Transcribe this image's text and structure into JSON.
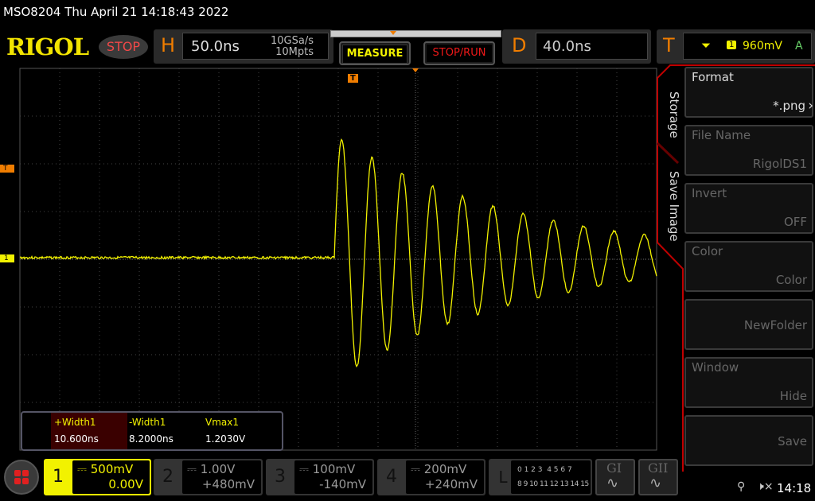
{
  "header": {
    "title": "MSO8204  Thu April 21 14:18:43 2022",
    "logo": "RIGOL",
    "run_state": "STOP"
  },
  "horizontal": {
    "letter": "H",
    "timebase": "50.0ns",
    "sample_rate": "10GSa/s",
    "memory_depth": "10Mpts"
  },
  "buttons": {
    "measure": "MEASURE",
    "stop_run": "STOP/RUN"
  },
  "delay": {
    "letter": "D",
    "value": "40.0ns"
  },
  "trigger": {
    "letter": "T",
    "source": "1",
    "level": "960mV",
    "mode": "A",
    "icon": "falling-edge-icon"
  },
  "markers": {
    "trigger_pos": "T",
    "trigger_level": "T",
    "channel1": "1"
  },
  "side_menu": {
    "tabs": [
      "Storage",
      "Save Image"
    ],
    "items": [
      {
        "label": "Format",
        "value": "*.png",
        "enabled": true
      },
      {
        "label": "File Name",
        "value": "RigolDS1",
        "enabled": false
      },
      {
        "label": "Invert",
        "value": "OFF",
        "enabled": false
      },
      {
        "label": "Color",
        "value": "Color",
        "enabled": false
      },
      {
        "label": "",
        "value": "NewFolder",
        "enabled": false
      },
      {
        "label": "Window",
        "value": "Hide",
        "enabled": false
      },
      {
        "label": "",
        "value": "Save",
        "enabled": false
      }
    ]
  },
  "measurements": [
    {
      "name": "+Width1",
      "value": "10.600ns"
    },
    {
      "name": "-Width1",
      "value": "8.2000ns"
    },
    {
      "name": "Vmax1",
      "value": "1.2030V"
    }
  ],
  "channels": [
    {
      "num": "1",
      "scale": "500mV",
      "offset": "0.00V",
      "active": true,
      "color": "#f2f200"
    },
    {
      "num": "2",
      "scale": "1.00V",
      "offset": "+480mV",
      "active": false
    },
    {
      "num": "3",
      "scale": "100mV",
      "offset": "-140mV",
      "active": false
    },
    {
      "num": "4",
      "scale": "200mV",
      "offset": "+240mV",
      "active": false
    }
  ],
  "logic": {
    "letter": "L",
    "row1": "0 1 2 3  4 5 6 7",
    "row2": "8 9 10 11 12 13 14 15"
  },
  "generators": [
    "GI",
    "GII"
  ],
  "status": {
    "time": "14:18"
  },
  "colors": {
    "trace": "#f2f200",
    "accent": "#f07d00",
    "menu_border": "#c00000"
  }
}
